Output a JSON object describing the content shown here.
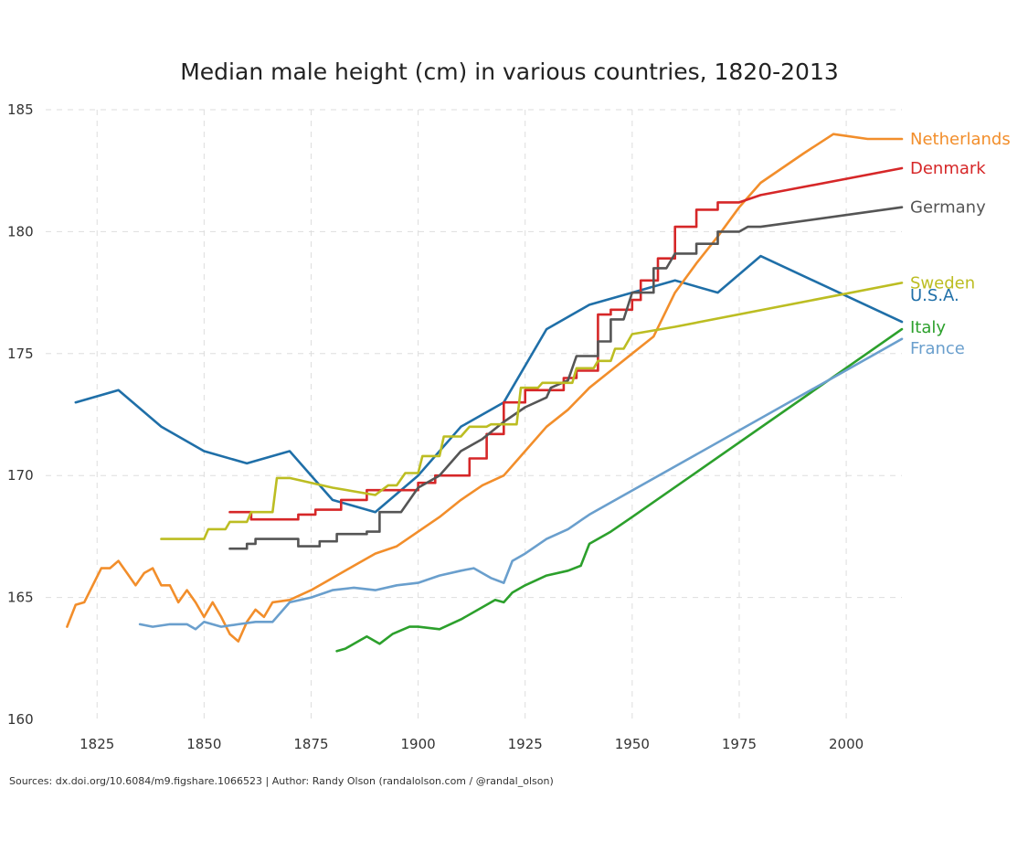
{
  "chart_data": {
    "type": "line",
    "title": "Median male height (cm) in various countries, 1820-2013",
    "xlabel": "",
    "ylabel": "",
    "xlim": [
      1813,
      2013
    ],
    "ylim": [
      160,
      185
    ],
    "x_ticks": [
      1825,
      1850,
      1875,
      1900,
      1925,
      1950,
      1975,
      2000
    ],
    "y_ticks": [
      160,
      165,
      170,
      175,
      180,
      185
    ],
    "grid": true,
    "legend": "direct labels at right end of lines",
    "source": "Sources: dx.doi.org/10.6084/m9.figshare.1066523 | Author: Randy Olson (randalolson.com / @randal_olson)",
    "series": [
      {
        "name": "U.S.A.",
        "color": "#1f6fa8",
        "points": [
          [
            1820,
            173
          ],
          [
            1830,
            173.5
          ],
          [
            1840,
            172
          ],
          [
            1850,
            171
          ],
          [
            1860,
            170.5
          ],
          [
            1870,
            171
          ],
          [
            1880,
            169
          ],
          [
            1890,
            168.5
          ],
          [
            1900,
            170
          ],
          [
            1910,
            172
          ],
          [
            1920,
            173
          ],
          [
            1930,
            176
          ],
          [
            1940,
            177
          ],
          [
            1950,
            177.5
          ],
          [
            1960,
            178
          ],
          [
            1970,
            177.5
          ],
          [
            1980,
            179
          ],
          [
            2013,
            176.3
          ]
        ]
      },
      {
        "name": "Netherlands",
        "color": "#f28e2b",
        "points": [
          [
            1818,
            163.8
          ],
          [
            1820,
            164.7
          ],
          [
            1822,
            164.8
          ],
          [
            1824,
            165.5
          ],
          [
            1826,
            166.2
          ],
          [
            1828,
            166.2
          ],
          [
            1830,
            166.5
          ],
          [
            1832,
            166
          ],
          [
            1834,
            165.5
          ],
          [
            1836,
            166
          ],
          [
            1838,
            166.2
          ],
          [
            1840,
            165.5
          ],
          [
            1842,
            165.5
          ],
          [
            1844,
            164.8
          ],
          [
            1846,
            165.3
          ],
          [
            1848,
            164.8
          ],
          [
            1850,
            164.2
          ],
          [
            1852,
            164.8
          ],
          [
            1854,
            164.2
          ],
          [
            1856,
            163.5
          ],
          [
            1858,
            163.2
          ],
          [
            1860,
            164
          ],
          [
            1862,
            164.5
          ],
          [
            1864,
            164.2
          ],
          [
            1866,
            164.8
          ],
          [
            1870,
            164.9
          ],
          [
            1875,
            165.3
          ],
          [
            1880,
            165.8
          ],
          [
            1885,
            166.3
          ],
          [
            1890,
            166.8
          ],
          [
            1895,
            167.1
          ],
          [
            1900,
            167.7
          ],
          [
            1905,
            168.3
          ],
          [
            1910,
            169
          ],
          [
            1915,
            169.6
          ],
          [
            1920,
            170
          ],
          [
            1925,
            171
          ],
          [
            1930,
            172
          ],
          [
            1935,
            172.7
          ],
          [
            1940,
            173.6
          ],
          [
            1945,
            174.3
          ],
          [
            1950,
            175
          ],
          [
            1955,
            175.7
          ],
          [
            1960,
            177.5
          ],
          [
            1965,
            178.7
          ],
          [
            1970,
            179.8
          ],
          [
            1975,
            181
          ],
          [
            1980,
            182
          ],
          [
            1990,
            183.2
          ],
          [
            1997,
            184
          ],
          [
            2005,
            183.8
          ],
          [
            2013,
            183.8
          ]
        ]
      },
      {
        "name": "Denmark",
        "color": "#d62728",
        "points": [
          [
            1856,
            168.5
          ],
          [
            1861,
            168.5
          ],
          [
            1861,
            168.2
          ],
          [
            1872,
            168.2
          ],
          [
            1872,
            168.4
          ],
          [
            1876,
            168.4
          ],
          [
            1876,
            168.6
          ],
          [
            1882,
            168.6
          ],
          [
            1882,
            169
          ],
          [
            1888,
            169
          ],
          [
            1888,
            169.4
          ],
          [
            1900,
            169.4
          ],
          [
            1900,
            169.7
          ],
          [
            1904,
            169.7
          ],
          [
            1904,
            170
          ],
          [
            1912,
            170
          ],
          [
            1912,
            170.7
          ],
          [
            1916,
            170.7
          ],
          [
            1916,
            171.7
          ],
          [
            1920,
            171.7
          ],
          [
            1920,
            173
          ],
          [
            1925,
            173
          ],
          [
            1925,
            173.5
          ],
          [
            1934,
            173.5
          ],
          [
            1934,
            174
          ],
          [
            1937,
            174
          ],
          [
            1937,
            174.3
          ],
          [
            1942,
            174.3
          ],
          [
            1942,
            176.6
          ],
          [
            1945,
            176.6
          ],
          [
            1945,
            176.8
          ],
          [
            1950,
            176.8
          ],
          [
            1950,
            177.2
          ],
          [
            1952,
            177.2
          ],
          [
            1952,
            178
          ],
          [
            1956,
            178
          ],
          [
            1956,
            178.9
          ],
          [
            1960,
            178.9
          ],
          [
            1960,
            180.2
          ],
          [
            1965,
            180.2
          ],
          [
            1965,
            180.9
          ],
          [
            1970,
            180.9
          ],
          [
            1970,
            181.2
          ],
          [
            1975,
            181.2
          ],
          [
            1980,
            181.5
          ],
          [
            2013,
            182.6
          ]
        ]
      },
      {
        "name": "Germany",
        "color": "#555555",
        "points": [
          [
            1856,
            167
          ],
          [
            1860,
            167
          ],
          [
            1860,
            167.2
          ],
          [
            1862,
            167.2
          ],
          [
            1862,
            167.4
          ],
          [
            1872,
            167.4
          ],
          [
            1872,
            167.1
          ],
          [
            1877,
            167.1
          ],
          [
            1877,
            167.3
          ],
          [
            1881,
            167.3
          ],
          [
            1881,
            167.6
          ],
          [
            1888,
            167.6
          ],
          [
            1888,
            167.7
          ],
          [
            1891,
            167.7
          ],
          [
            1891,
            168.5
          ],
          [
            1896,
            168.5
          ],
          [
            1900,
            169.5
          ],
          [
            1905,
            170
          ],
          [
            1910,
            171
          ],
          [
            1915,
            171.5
          ],
          [
            1920,
            172.2
          ],
          [
            1925,
            172.8
          ],
          [
            1930,
            173.2
          ],
          [
            1931,
            173.6
          ],
          [
            1935,
            173.9
          ],
          [
            1937,
            174.9
          ],
          [
            1942,
            174.9
          ],
          [
            1942,
            175.5
          ],
          [
            1945,
            175.5
          ],
          [
            1945,
            176.4
          ],
          [
            1948,
            176.4
          ],
          [
            1950,
            177.5
          ],
          [
            1955,
            177.5
          ],
          [
            1955,
            178.5
          ],
          [
            1958,
            178.5
          ],
          [
            1960,
            179.1
          ],
          [
            1965,
            179.1
          ],
          [
            1965,
            179.5
          ],
          [
            1970,
            179.5
          ],
          [
            1970,
            180
          ],
          [
            1975,
            180
          ],
          [
            1977,
            180.2
          ],
          [
            1980,
            180.2
          ],
          [
            2013,
            181
          ]
        ]
      },
      {
        "name": "Sweden",
        "color": "#bcbd22",
        "points": [
          [
            1840,
            167.4
          ],
          [
            1850,
            167.4
          ],
          [
            1851,
            167.8
          ],
          [
            1855,
            167.8
          ],
          [
            1856,
            168.1
          ],
          [
            1860,
            168.1
          ],
          [
            1861,
            168.5
          ],
          [
            1866,
            168.5
          ],
          [
            1867,
            169.9
          ],
          [
            1870,
            169.9
          ],
          [
            1880,
            169.5
          ],
          [
            1890,
            169.2
          ],
          [
            1893,
            169.6
          ],
          [
            1895,
            169.6
          ],
          [
            1897,
            170.1
          ],
          [
            1900,
            170.1
          ],
          [
            1901,
            170.8
          ],
          [
            1905,
            170.8
          ],
          [
            1906,
            171.6
          ],
          [
            1910,
            171.6
          ],
          [
            1912,
            172
          ],
          [
            1916,
            172
          ],
          [
            1917,
            172.1
          ],
          [
            1923,
            172.1
          ],
          [
            1924,
            173.6
          ],
          [
            1928,
            173.6
          ],
          [
            1929,
            173.8
          ],
          [
            1936,
            173.8
          ],
          [
            1937,
            174.4
          ],
          [
            1941,
            174.4
          ],
          [
            1942,
            174.7
          ],
          [
            1945,
            174.7
          ],
          [
            1946,
            175.2
          ],
          [
            1948,
            175.2
          ],
          [
            1950,
            175.8
          ],
          [
            1960,
            176.1
          ],
          [
            2013,
            177.9
          ]
        ]
      },
      {
        "name": "Italy",
        "color": "#2ca02c",
        "points": [
          [
            1881,
            162.8
          ],
          [
            1883,
            162.9
          ],
          [
            1885,
            163.1
          ],
          [
            1888,
            163.4
          ],
          [
            1891,
            163.1
          ],
          [
            1894,
            163.5
          ],
          [
            1898,
            163.8
          ],
          [
            1900,
            163.8
          ],
          [
            1905,
            163.7
          ],
          [
            1910,
            164.1
          ],
          [
            1915,
            164.6
          ],
          [
            1918,
            164.9
          ],
          [
            1920,
            164.8
          ],
          [
            1922,
            165.2
          ],
          [
            1925,
            165.5
          ],
          [
            1930,
            165.9
          ],
          [
            1935,
            166.1
          ],
          [
            1938,
            166.3
          ],
          [
            1940,
            167.2
          ],
          [
            1945,
            167.7
          ],
          [
            1950,
            168.3
          ],
          [
            2013,
            176
          ]
        ]
      },
      {
        "name": "France",
        "color": "#6a9fcd",
        "points": [
          [
            1835,
            163.9
          ],
          [
            1838,
            163.8
          ],
          [
            1842,
            163.9
          ],
          [
            1846,
            163.9
          ],
          [
            1848,
            163.7
          ],
          [
            1850,
            164
          ],
          [
            1854,
            163.8
          ],
          [
            1858,
            163.9
          ],
          [
            1862,
            164
          ],
          [
            1866,
            164
          ],
          [
            1870,
            164.8
          ],
          [
            1875,
            165
          ],
          [
            1880,
            165.3
          ],
          [
            1885,
            165.4
          ],
          [
            1890,
            165.3
          ],
          [
            1895,
            165.5
          ],
          [
            1900,
            165.6
          ],
          [
            1905,
            165.9
          ],
          [
            1910,
            166.1
          ],
          [
            1913,
            166.2
          ],
          [
            1917,
            165.8
          ],
          [
            1920,
            165.6
          ],
          [
            1922,
            166.5
          ],
          [
            1925,
            166.8
          ],
          [
            1930,
            167.4
          ],
          [
            1935,
            167.8
          ],
          [
            1940,
            168.4
          ],
          [
            2013,
            175.6
          ]
        ]
      }
    ]
  }
}
